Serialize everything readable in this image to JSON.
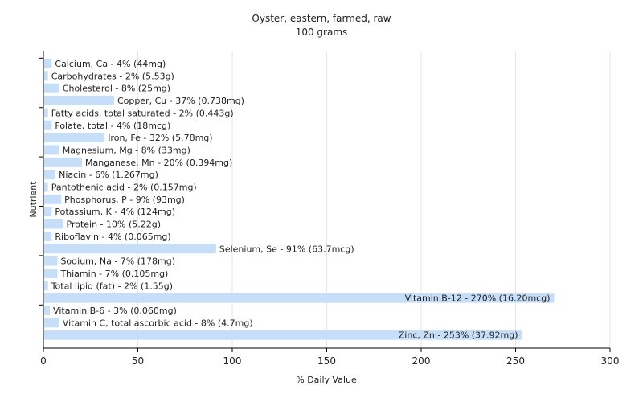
{
  "chart_data": {
    "type": "bar",
    "orientation": "horizontal",
    "title": "Oyster, eastern, farmed, raw",
    "subtitle": "100 grams",
    "xlabel": "% Daily Value",
    "ylabel": "Nutrient",
    "xlim": [
      0,
      300
    ],
    "xticks": [
      0,
      50,
      100,
      150,
      200,
      250,
      300
    ],
    "grid": true,
    "bar_color": "#c7def9",
    "categories": [
      "Calcium, Ca",
      "Carbohydrates",
      "Cholesterol",
      "Copper, Cu",
      "Fatty acids, total saturated",
      "Folate, total",
      "Iron, Fe",
      "Magnesium, Mg",
      "Manganese, Mn",
      "Niacin",
      "Pantothenic acid",
      "Phosphorus, P",
      "Potassium, K",
      "Protein",
      "Riboflavin",
      "Selenium, Se",
      "Sodium, Na",
      "Thiamin",
      "Total lipid (fat)",
      "Vitamin B-12",
      "Vitamin B-6",
      "Vitamin C, total ascorbic acid",
      "Zinc, Zn"
    ],
    "values": [
      4,
      2,
      8,
      37,
      2,
      4,
      32,
      8,
      20,
      6,
      2,
      9,
      4,
      10,
      4,
      91,
      7,
      7,
      2,
      270,
      3,
      8,
      253
    ],
    "labels": [
      "Calcium, Ca - 4% (44mg)",
      "Carbohydrates - 2% (5.53g)",
      "Cholesterol - 8% (25mg)",
      "Copper, Cu - 37% (0.738mg)",
      "Fatty acids, total saturated - 2% (0.443g)",
      "Folate, total - 4% (18mcg)",
      "Iron, Fe - 32% (5.78mg)",
      "Magnesium, Mg - 8% (33mg)",
      "Manganese, Mn - 20% (0.394mg)",
      "Niacin - 6% (1.267mg)",
      "Pantothenic acid - 2% (0.157mg)",
      "Phosphorus, P - 9% (93mg)",
      "Potassium, K - 4% (124mg)",
      "Protein - 10% (5.22g)",
      "Riboflavin - 4% (0.065mg)",
      "Selenium, Se - 91% (63.7mcg)",
      "Sodium, Na - 7% (178mg)",
      "Thiamin - 7% (0.105mg)",
      "Total lipid (fat) - 2% (1.55g)",
      "Vitamin B-12 - 270% (16.20mcg)",
      "Vitamin B-6 - 3% (0.060mg)",
      "Vitamin C, total ascorbic acid - 8% (4.7mg)",
      "Zinc, Zn - 253% (37.92mg)"
    ]
  }
}
